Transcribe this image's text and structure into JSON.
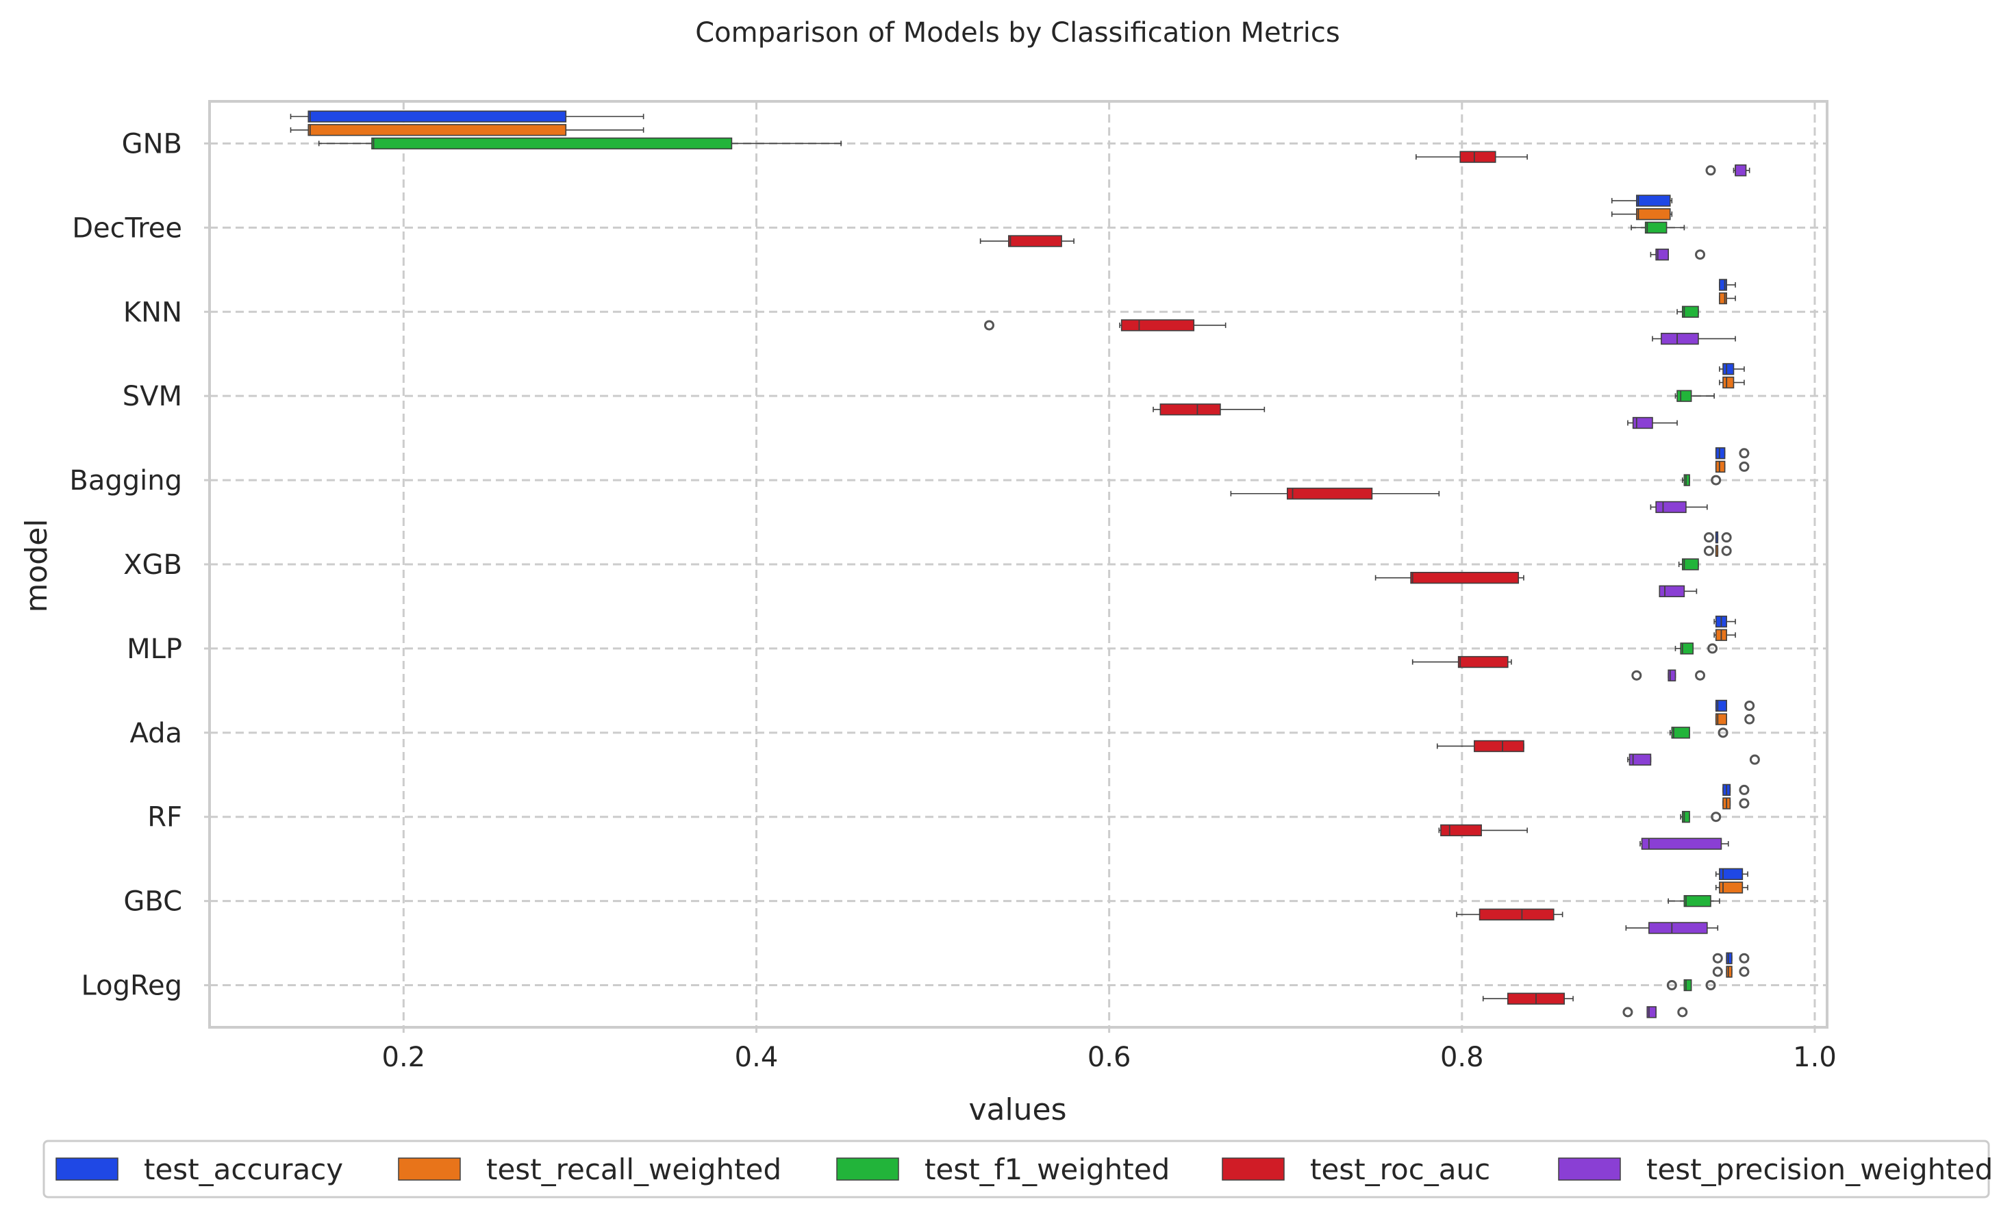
{
  "chart_data": {
    "type": "boxplot",
    "orientation": "horizontal",
    "title": "Comparison of Models by Classification Metrics",
    "xlabel": "values",
    "ylabel": "model",
    "xlim": [
      0.09,
      1.007
    ],
    "xticks": [
      0.2,
      0.4,
      0.6,
      0.8,
      1.0
    ],
    "xtick_labels": [
      "0.2",
      "0.4",
      "0.6",
      "0.8",
      "1.0"
    ],
    "grid": true,
    "legend_position": "bottom",
    "categories": [
      "GNB",
      "DecTree",
      "KNN",
      "SVM",
      "Bagging",
      "XGB",
      "MLP",
      "Ada",
      "RF",
      "GBC",
      "LogReg"
    ],
    "series": [
      {
        "name": "test_accuracy",
        "color": "#1f48e5",
        "boxes": [
          {
            "whislo": 0.136,
            "q1": 0.146,
            "med": 0.147,
            "q3": 0.292,
            "whishi": 0.336,
            "fliers": []
          },
          {
            "whislo": 0.885,
            "q1": 0.899,
            "med": 0.9,
            "q3": 0.918,
            "whishi": 0.919,
            "fliers": []
          },
          {
            "whislo": 0.946,
            "q1": 0.946,
            "med": 0.949,
            "q3": 0.95,
            "whishi": 0.955,
            "fliers": []
          },
          {
            "whislo": 0.946,
            "q1": 0.948,
            "med": 0.95,
            "q3": 0.954,
            "whishi": 0.96,
            "fliers": []
          },
          {
            "whislo": 0.944,
            "q1": 0.944,
            "med": 0.946,
            "q3": 0.949,
            "whishi": 0.949,
            "fliers": [
              0.96
            ]
          },
          {
            "whislo": 0.944,
            "q1": 0.944,
            "med": 0.944,
            "q3": 0.945,
            "whishi": 0.945,
            "fliers": [
              0.94,
              0.95
            ]
          },
          {
            "whislo": 0.943,
            "q1": 0.944,
            "med": 0.947,
            "q3": 0.95,
            "whishi": 0.955,
            "fliers": []
          },
          {
            "whislo": 0.944,
            "q1": 0.944,
            "med": 0.945,
            "q3": 0.95,
            "whishi": 0.95,
            "fliers": [
              0.963
            ]
          },
          {
            "whislo": 0.948,
            "q1": 0.948,
            "med": 0.95,
            "q3": 0.952,
            "whishi": 0.952,
            "fliers": [
              0.96
            ]
          },
          {
            "whislo": 0.944,
            "q1": 0.946,
            "med": 0.948,
            "q3": 0.959,
            "whishi": 0.962,
            "fliers": []
          },
          {
            "whislo": 0.95,
            "q1": 0.95,
            "med": 0.951,
            "q3": 0.953,
            "whishi": 0.953,
            "fliers": [
              0.945,
              0.96
            ]
          }
        ]
      },
      {
        "name": "test_recall_weighted",
        "color": "#e8741a",
        "boxes": [
          {
            "whislo": 0.136,
            "q1": 0.146,
            "med": 0.147,
            "q3": 0.292,
            "whishi": 0.336,
            "fliers": []
          },
          {
            "whislo": 0.885,
            "q1": 0.899,
            "med": 0.9,
            "q3": 0.918,
            "whishi": 0.919,
            "fliers": []
          },
          {
            "whislo": 0.946,
            "q1": 0.946,
            "med": 0.949,
            "q3": 0.95,
            "whishi": 0.955,
            "fliers": []
          },
          {
            "whislo": 0.946,
            "q1": 0.948,
            "med": 0.95,
            "q3": 0.954,
            "whishi": 0.96,
            "fliers": []
          },
          {
            "whislo": 0.944,
            "q1": 0.944,
            "med": 0.946,
            "q3": 0.949,
            "whishi": 0.949,
            "fliers": [
              0.96
            ]
          },
          {
            "whislo": 0.944,
            "q1": 0.944,
            "med": 0.944,
            "q3": 0.945,
            "whishi": 0.945,
            "fliers": [
              0.94,
              0.95
            ]
          },
          {
            "whislo": 0.943,
            "q1": 0.944,
            "med": 0.947,
            "q3": 0.95,
            "whishi": 0.955,
            "fliers": []
          },
          {
            "whislo": 0.944,
            "q1": 0.944,
            "med": 0.945,
            "q3": 0.95,
            "whishi": 0.95,
            "fliers": [
              0.963
            ]
          },
          {
            "whislo": 0.948,
            "q1": 0.948,
            "med": 0.95,
            "q3": 0.952,
            "whishi": 0.952,
            "fliers": [
              0.96
            ]
          },
          {
            "whislo": 0.944,
            "q1": 0.946,
            "med": 0.948,
            "q3": 0.959,
            "whishi": 0.962,
            "fliers": []
          },
          {
            "whislo": 0.95,
            "q1": 0.95,
            "med": 0.951,
            "q3": 0.953,
            "whishi": 0.953,
            "fliers": [
              0.945,
              0.96
            ]
          }
        ]
      },
      {
        "name": "test_f1_weighted",
        "color": "#22b43a",
        "boxes": [
          {
            "whislo": 0.152,
            "q1": 0.182,
            "med": 0.183,
            "q3": 0.386,
            "whishi": 0.448,
            "fliers": []
          },
          {
            "whislo": 0.896,
            "q1": 0.904,
            "med": 0.905,
            "q3": 0.916,
            "whishi": 0.926,
            "fliers": []
          },
          {
            "whislo": 0.922,
            "q1": 0.925,
            "med": 0.926,
            "q3": 0.934,
            "whishi": 0.934,
            "fliers": []
          },
          {
            "whislo": 0.921,
            "q1": 0.922,
            "med": 0.924,
            "q3": 0.93,
            "whishi": 0.943,
            "fliers": []
          },
          {
            "whislo": 0.925,
            "q1": 0.926,
            "med": 0.927,
            "q3": 0.929,
            "whishi": 0.929,
            "fliers": [
              0.944
            ]
          },
          {
            "whislo": 0.923,
            "q1": 0.925,
            "med": 0.926,
            "q3": 0.934,
            "whishi": 0.934,
            "fliers": []
          },
          {
            "whislo": 0.921,
            "q1": 0.924,
            "med": 0.925,
            "q3": 0.931,
            "whishi": 0.931,
            "fliers": [
              0.942
            ]
          },
          {
            "whislo": 0.918,
            "q1": 0.919,
            "med": 0.92,
            "q3": 0.929,
            "whishi": 0.929,
            "fliers": [
              0.948
            ]
          },
          {
            "whislo": 0.924,
            "q1": 0.925,
            "med": 0.926,
            "q3": 0.929,
            "whishi": 0.929,
            "fliers": [
              0.944
            ]
          },
          {
            "whislo": 0.917,
            "q1": 0.926,
            "med": 0.927,
            "q3": 0.941,
            "whishi": 0.946,
            "fliers": []
          },
          {
            "whislo": 0.926,
            "q1": 0.926,
            "med": 0.927,
            "q3": 0.93,
            "whishi": 0.93,
            "fliers": [
              0.919,
              0.941
            ]
          }
        ]
      },
      {
        "name": "test_roc_auc",
        "color": "#d01c26",
        "boxes": [
          {
            "whislo": 0.774,
            "q1": 0.799,
            "med": 0.807,
            "q3": 0.819,
            "whishi": 0.837,
            "fliers": []
          },
          {
            "whislo": 0.527,
            "q1": 0.543,
            "med": 0.544,
            "q3": 0.573,
            "whishi": 0.58,
            "fliers": []
          },
          {
            "whislo": 0.606,
            "q1": 0.607,
            "med": 0.617,
            "q3": 0.648,
            "whishi": 0.666,
            "fliers": [
              0.532
            ]
          },
          {
            "whislo": 0.625,
            "q1": 0.629,
            "med": 0.65,
            "q3": 0.663,
            "whishi": 0.688,
            "fliers": []
          },
          {
            "whislo": 0.669,
            "q1": 0.701,
            "med": 0.704,
            "q3": 0.749,
            "whishi": 0.787,
            "fliers": []
          },
          {
            "whislo": 0.751,
            "q1": 0.771,
            "med": 0.772,
            "q3": 0.832,
            "whishi": 0.835,
            "fliers": []
          },
          {
            "whislo": 0.772,
            "q1": 0.798,
            "med": 0.799,
            "q3": 0.826,
            "whishi": 0.828,
            "fliers": []
          },
          {
            "whislo": 0.786,
            "q1": 0.807,
            "med": 0.823,
            "q3": 0.835,
            "whishi": 0.835,
            "fliers": []
          },
          {
            "whislo": 0.787,
            "q1": 0.788,
            "med": 0.793,
            "q3": 0.811,
            "whishi": 0.837,
            "fliers": []
          },
          {
            "whislo": 0.797,
            "q1": 0.81,
            "med": 0.834,
            "q3": 0.852,
            "whishi": 0.857,
            "fliers": []
          },
          {
            "whislo": 0.812,
            "q1": 0.826,
            "med": 0.842,
            "q3": 0.858,
            "whishi": 0.863,
            "fliers": []
          }
        ]
      },
      {
        "name": "test_precision_weighted",
        "color": "#8a3fd4",
        "boxes": [
          {
            "whislo": 0.954,
            "q1": 0.955,
            "med": 0.955,
            "q3": 0.961,
            "whishi": 0.963,
            "fliers": [
              0.941
            ]
          },
          {
            "whislo": 0.907,
            "q1": 0.91,
            "med": 0.911,
            "q3": 0.917,
            "whishi": 0.917,
            "fliers": [
              0.935
            ]
          },
          {
            "whislo": 0.908,
            "q1": 0.913,
            "med": 0.922,
            "q3": 0.934,
            "whishi": 0.955,
            "fliers": []
          },
          {
            "whislo": 0.894,
            "q1": 0.897,
            "med": 0.899,
            "q3": 0.908,
            "whishi": 0.922,
            "fliers": []
          },
          {
            "whislo": 0.907,
            "q1": 0.91,
            "med": 0.914,
            "q3": 0.927,
            "whishi": 0.939,
            "fliers": []
          },
          {
            "whislo": 0.912,
            "q1": 0.912,
            "med": 0.915,
            "q3": 0.926,
            "whishi": 0.933,
            "fliers": []
          },
          {
            "whislo": 0.917,
            "q1": 0.917,
            "med": 0.918,
            "q3": 0.921,
            "whishi": 0.921,
            "fliers": [
              0.899,
              0.935
            ]
          },
          {
            "whislo": 0.894,
            "q1": 0.895,
            "med": 0.897,
            "q3": 0.907,
            "whishi": 0.907,
            "fliers": [
              0.966
            ]
          },
          {
            "whislo": 0.901,
            "q1": 0.902,
            "med": 0.906,
            "q3": 0.947,
            "whishi": 0.951,
            "fliers": []
          },
          {
            "whislo": 0.893,
            "q1": 0.906,
            "med": 0.919,
            "q3": 0.939,
            "whishi": 0.945,
            "fliers": []
          },
          {
            "whislo": 0.905,
            "q1": 0.905,
            "med": 0.906,
            "q3": 0.91,
            "whishi": 0.91,
            "fliers": [
              0.894,
              0.925
            ]
          }
        ]
      }
    ]
  }
}
